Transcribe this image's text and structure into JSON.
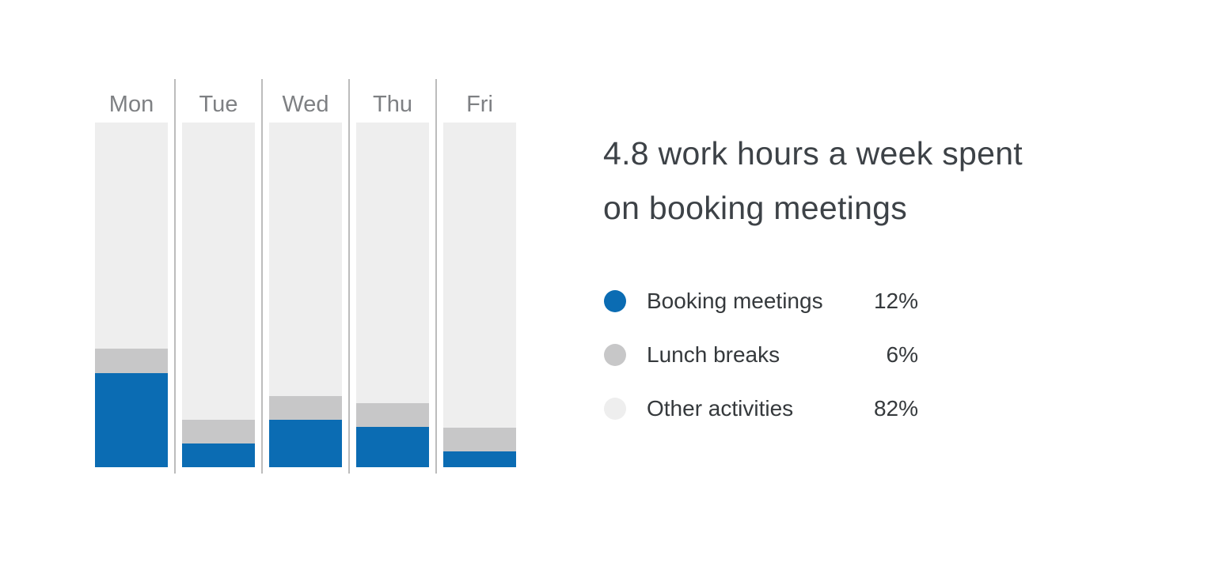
{
  "page": {
    "background_color": "#ffffff"
  },
  "headline": {
    "lines": [
      "4.8 work hours a week spent",
      "on booking meetings"
    ],
    "text_color": "#3d4247"
  },
  "legend": {
    "items": [
      {
        "label": "Booking meetings",
        "value": "12%",
        "color": "#0b6cb3"
      },
      {
        "label": "Lunch breaks",
        "value": "6%",
        "color": "#c7c7c8"
      },
      {
        "label": "Other activities",
        "value": "82%",
        "color": "#eeeeee"
      }
    ],
    "text_color": "#35393c"
  },
  "chart_data": {
    "type": "bar",
    "stacked": true,
    "orientation": "vertical",
    "categories": [
      "Mon",
      "Tue",
      "Wed",
      "Thu",
      "Fri"
    ],
    "series": [
      {
        "name": "Booking meetings",
        "color": "#0b6cb3",
        "values": [
          27.4,
          6.9,
          13.8,
          11.7,
          4.6
        ]
      },
      {
        "name": "Lunch breaks",
        "color": "#c7c7c8",
        "values": [
          7.1,
          6.9,
          6.9,
          6.9,
          6.9
        ]
      },
      {
        "name": "Other activities",
        "color": "#eeeeee",
        "values": [
          65.5,
          86.2,
          79.3,
          81.4,
          88.5
        ]
      }
    ],
    "unit": "%",
    "ylim": [
      0,
      100
    ],
    "grid": false,
    "axis_labels_shown": false,
    "column_divider_color": "#bcbcbc",
    "category_label_color": "#7e8083",
    "legend_position": "right"
  }
}
